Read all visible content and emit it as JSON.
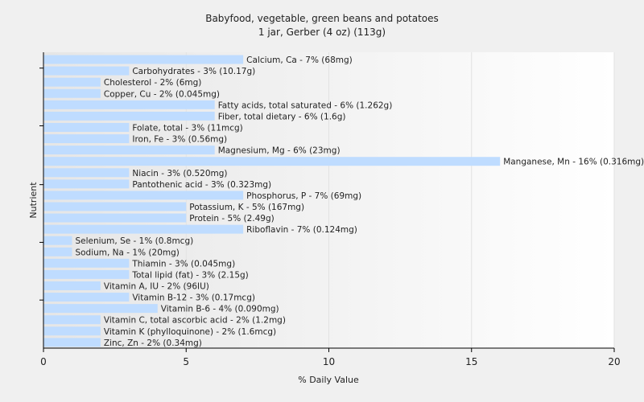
{
  "chart_data": {
    "type": "bar",
    "orientation": "horizontal",
    "title": "Babyfood, vegetable, green beans and potatoes",
    "subtitle": "1 jar, Gerber (4 oz) (113g)",
    "xlabel": "% Daily Value",
    "ylabel": "Nutrient",
    "xlim": [
      0,
      20
    ],
    "xticks": [
      "0",
      "5",
      "10",
      "15",
      "20"
    ],
    "grid": true,
    "bar_color": "#bfdcff",
    "categories": [
      "Calcium, Ca - 7% (68mg)",
      "Carbohydrates - 3% (10.17g)",
      "Cholesterol - 2% (6mg)",
      "Copper, Cu - 2% (0.045mg)",
      "Fatty acids, total saturated - 6% (1.262g)",
      "Fiber, total dietary - 6% (1.6g)",
      "Folate, total - 3% (11mcg)",
      "Iron, Fe - 3% (0.56mg)",
      "Magnesium, Mg - 6% (23mg)",
      "Manganese, Mn - 16% (0.316mg)",
      "Niacin - 3% (0.520mg)",
      "Pantothenic acid - 3% (0.323mg)",
      "Phosphorus, P - 7% (69mg)",
      "Potassium, K - 5% (167mg)",
      "Protein - 5% (2.49g)",
      "Riboflavin - 7% (0.124mg)",
      "Selenium, Se - 1% (0.8mcg)",
      "Sodium, Na - 1% (20mg)",
      "Thiamin - 3% (0.045mg)",
      "Total lipid (fat) - 3% (2.15g)",
      "Vitamin A, IU - 2% (96IU)",
      "Vitamin B-12 - 3% (0.17mcg)",
      "Vitamin B-6 - 4% (0.090mg)",
      "Vitamin C, total ascorbic acid - 2% (1.2mg)",
      "Vitamin K (phylloquinone) - 2% (1.6mcg)",
      "Zinc, Zn - 2% (0.34mg)"
    ],
    "values": [
      7,
      3,
      2,
      2,
      6,
      6,
      3,
      3,
      6,
      16,
      3,
      3,
      7,
      5,
      5,
      7,
      1,
      1,
      3,
      3,
      2,
      3,
      4,
      2,
      2,
      2
    ]
  }
}
